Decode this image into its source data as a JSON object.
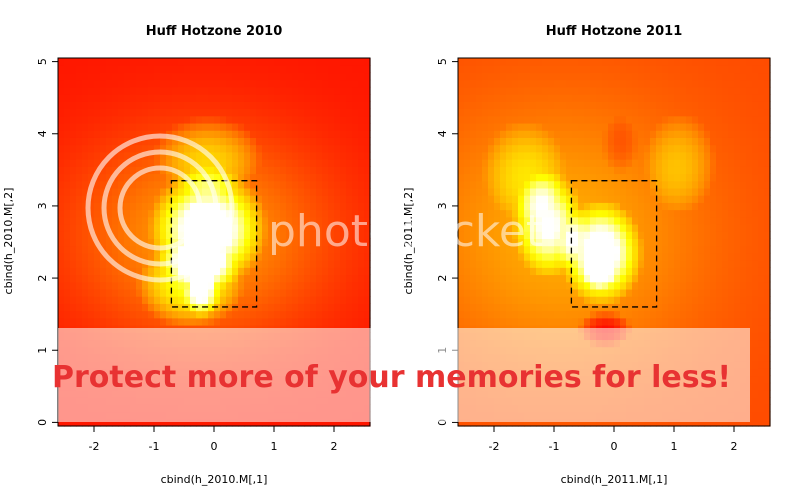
{
  "chart_data": [
    {
      "type": "heatmap",
      "title": "Huff Hotzone 2010",
      "xlabel": "cbind(h_2010.M[,1]",
      "ylabel": "cbind(h_2010.M[,2]",
      "xlim": [
        -2.6,
        2.6
      ],
      "ylim": [
        -0.05,
        5.05
      ],
      "x_ticks": [
        -2,
        -1,
        0,
        1,
        2
      ],
      "y_ticks": [
        0,
        1,
        2,
        3,
        4,
        5
      ],
      "strike_zone": {
        "x": [
          -0.71,
          0.71
        ],
        "y": [
          1.6,
          3.35
        ]
      },
      "background_color": "#ff1500",
      "blobs": [
        {
          "x": -0.2,
          "y": 2.6,
          "sx": 1.5,
          "sy": 1.0,
          "a": 0.42,
          "shape": "gauss"
        },
        {
          "x": -0.1,
          "y": 2.7,
          "sx": 1.0,
          "sy": 0.85,
          "a": 0.65,
          "shape": "bump"
        },
        {
          "x": -0.1,
          "y": 3.7,
          "sx": 0.9,
          "sy": 0.55,
          "a": 0.35,
          "shape": "bump"
        },
        {
          "x": -0.4,
          "y": 1.9,
          "sx": 0.9,
          "sy": 0.6,
          "a": 0.45,
          "shape": "bump"
        },
        {
          "x": -0.15,
          "y": 2.65,
          "sx": 0.35,
          "sy": 0.45,
          "a": 0.4,
          "shape": "bump"
        },
        {
          "x": -0.2,
          "y": 1.75,
          "sx": 0.3,
          "sy": 0.3,
          "a": 0.3,
          "shape": "bump"
        }
      ]
    },
    {
      "type": "heatmap",
      "title": "Huff Hotzone 2011",
      "xlabel": "cbind(h_2011.M[,1]",
      "ylabel": "cbind(h_2011.M[,2]",
      "xlim": [
        -2.6,
        2.6
      ],
      "ylim": [
        -0.05,
        5.05
      ],
      "x_ticks": [
        -2,
        -1,
        0,
        1,
        2
      ],
      "y_ticks": [
        0,
        1,
        2,
        3,
        4,
        5
      ],
      "strike_zone": {
        "x": [
          -0.71,
          0.71
        ],
        "y": [
          1.6,
          3.35
        ]
      },
      "background_color": "#ff4a00",
      "blobs": [
        {
          "x": -0.9,
          "y": 2.6,
          "sx": 1.7,
          "sy": 1.3,
          "a": 0.3,
          "shape": "gauss"
        },
        {
          "x": -1.1,
          "y": 2.75,
          "sx": 0.6,
          "sy": 0.75,
          "a": 0.5,
          "shape": "bump"
        },
        {
          "x": -0.2,
          "y": 2.35,
          "sx": 0.7,
          "sy": 0.75,
          "a": 0.6,
          "shape": "bump"
        },
        {
          "x": -1.5,
          "y": 3.5,
          "sx": 0.7,
          "sy": 0.7,
          "a": 0.25,
          "shape": "bump"
        },
        {
          "x": 1.1,
          "y": 3.6,
          "sx": 0.6,
          "sy": 0.7,
          "a": 0.25,
          "shape": "bump"
        },
        {
          "x": -0.25,
          "y": 2.2,
          "sx": 0.3,
          "sy": 0.35,
          "a": 0.3,
          "shape": "bump"
        },
        {
          "x": -0.15,
          "y": 1.3,
          "sx": 0.45,
          "sy": 0.25,
          "a": -0.35,
          "shape": "bump"
        },
        {
          "x": 0.1,
          "y": 3.85,
          "sx": 0.3,
          "sy": 0.4,
          "a": -0.12,
          "shape": "bump"
        }
      ]
    }
  ],
  "watermark": {
    "logo_text": "photobucket",
    "banner_text": "Protect more of your memories for less!"
  }
}
